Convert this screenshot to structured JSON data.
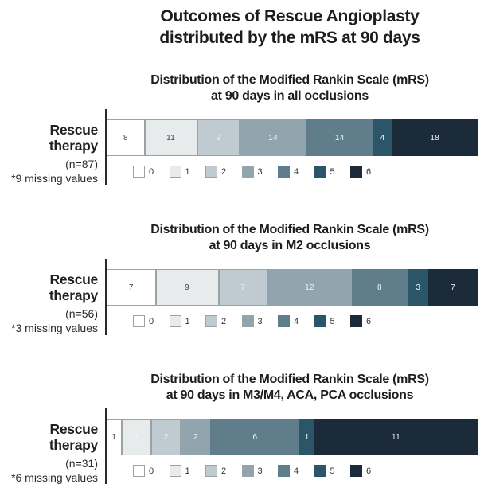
{
  "page_title": {
    "line1": "Outcomes of Rescue Angioplasty",
    "line2": "distributed by the mRS at 90 days"
  },
  "legend": {
    "items": [
      {
        "label": "0",
        "color": "#ffffff",
        "bordered": true
      },
      {
        "label": "1",
        "color": "#e8ebeb",
        "bordered": true
      },
      {
        "label": "2",
        "color": "#bfcbd1",
        "bordered": true
      },
      {
        "label": "3",
        "color": "#92a5ae",
        "bordered": true
      },
      {
        "label": "4",
        "color": "#5f7d8b",
        "bordered": false
      },
      {
        "label": "5",
        "color": "#2b5669",
        "bordered": false
      },
      {
        "label": "6",
        "color": "#1b2b3a",
        "bordered": false
      }
    ]
  },
  "chart_data": [
    {
      "type": "bar",
      "orientation": "horizontal",
      "stacked": true,
      "title_line1": "Distribution of the Modified Rankin Scale (mRS)",
      "title_line2": "at 90 days in all occlusions",
      "category": "Rescue therapy",
      "n_label": "(n=87)",
      "missing_label": "*9 missing values",
      "series_labels": [
        "0",
        "1",
        "2",
        "3",
        "4",
        "5",
        "6"
      ],
      "values": [
        8,
        11,
        9,
        14,
        14,
        4,
        18
      ],
      "value_label_styles": [
        "dark",
        "dark",
        "light",
        "light",
        "light",
        "light",
        "light"
      ],
      "legend_position": "bottom"
    },
    {
      "type": "bar",
      "orientation": "horizontal",
      "stacked": true,
      "title_line1": "Distribution of the Modified Rankin Scale (mRS)",
      "title_line2": "at 90 days in M2 occlusions",
      "category": "Rescue therapy",
      "n_label": "(n=56)",
      "missing_label": "*3 missing values",
      "series_labels": [
        "0",
        "1",
        "2",
        "3",
        "4",
        "5",
        "6"
      ],
      "values": [
        7,
        9,
        7,
        12,
        8,
        3,
        7
      ],
      "value_label_styles": [
        "dark",
        "dark",
        "light",
        "light",
        "light",
        "light",
        "light"
      ],
      "legend_position": "bottom"
    },
    {
      "type": "bar",
      "orientation": "horizontal",
      "stacked": true,
      "title_line1": "Distribution of the Modified Rankin Scale (mRS)",
      "title_line2": "at 90 days in M3/M4, ACA, PCA occlusions",
      "category": "Rescue therapy",
      "n_label": "(n=31)",
      "missing_label": "*6 missing values",
      "series_labels": [
        "0",
        "1",
        "2",
        "3",
        "4",
        "5",
        "6"
      ],
      "values": [
        1,
        2,
        2,
        2,
        6,
        1,
        11
      ],
      "value_label_styles": [
        "dark",
        "light",
        "light",
        "light",
        "light",
        "light",
        "light"
      ],
      "legend_position": "bottom"
    }
  ]
}
